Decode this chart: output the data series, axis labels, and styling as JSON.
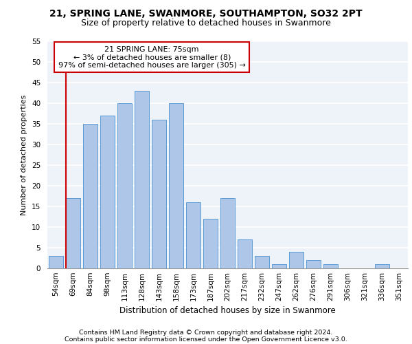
{
  "title1": "21, SPRING LANE, SWANMORE, SOUTHAMPTON, SO32 2PT",
  "title2": "Size of property relative to detached houses in Swanmore",
  "xlabel": "Distribution of detached houses by size in Swanmore",
  "ylabel": "Number of detached properties",
  "categories": [
    "54sqm",
    "69sqm",
    "84sqm",
    "98sqm",
    "113sqm",
    "128sqm",
    "143sqm",
    "158sqm",
    "173sqm",
    "187sqm",
    "202sqm",
    "217sqm",
    "232sqm",
    "247sqm",
    "262sqm",
    "276sqm",
    "291sqm",
    "306sqm",
    "321sqm",
    "336sqm",
    "351sqm"
  ],
  "values": [
    3,
    17,
    35,
    37,
    40,
    43,
    36,
    40,
    16,
    12,
    17,
    7,
    3,
    1,
    4,
    2,
    1,
    0,
    0,
    1,
    0
  ],
  "bar_color": "#aec6e8",
  "bar_edge_color": "#5b9bd5",
  "annotation_title": "21 SPRING LANE: 75sqm",
  "annotation_line1": "← 3% of detached houses are smaller (8)",
  "annotation_line2": "97% of semi-detached houses are larger (305) →",
  "annotation_box_color": "#ffffff",
  "annotation_box_edge_color": "#cc0000",
  "vline_color": "#cc0000",
  "footnote1": "Contains HM Land Registry data © Crown copyright and database right 2024.",
  "footnote2": "Contains public sector information licensed under the Open Government Licence v3.0.",
  "ylim": [
    0,
    55
  ],
  "yticks": [
    0,
    5,
    10,
    15,
    20,
    25,
    30,
    35,
    40,
    45,
    50,
    55
  ],
  "background_color": "#eef2f9",
  "grid_color": "#ffffff",
  "title1_fontsize": 10,
  "title2_fontsize": 9,
  "xlabel_fontsize": 8.5,
  "ylabel_fontsize": 8,
  "tick_fontsize": 7.5,
  "annotation_fontsize": 8,
  "footnote_fontsize": 6.8
}
